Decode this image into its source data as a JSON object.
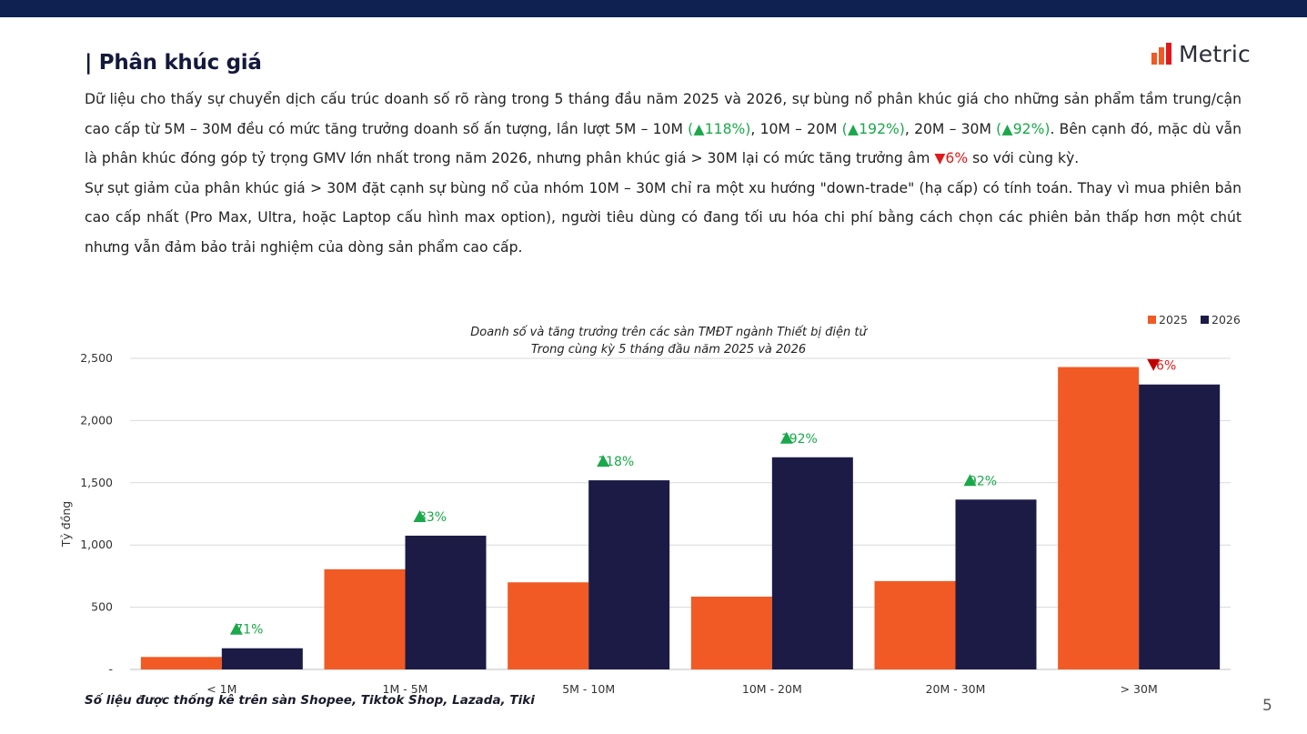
{
  "header": {
    "title": "| Phân khúc giá",
    "logo_text": "Metric"
  },
  "text": {
    "p1_a": "Dữ liệu cho thấy sự chuyển dịch cấu trúc doanh số rõ ràng trong 5 tháng đầu năm 2025 và 2026, sự bùng nổ phân khúc giá cho những sản phẩm tầm trung/cận cao cấp từ 5M – 30M đều có mức tăng trưởng doanh số ấn tượng, lần lượt 5M – 10M ",
    "p1_g1": "(▲118%)",
    "p1_b": ", 10M – 20M ",
    "p1_g2": "(▲192%)",
    "p1_c": ", 20M – 30M ",
    "p1_g3": "(▲92%)",
    "p1_d": ". Bên cạnh đó, mặc dù vẫn là phân khúc đóng góp tỷ trọng GMV lớn nhất trong năm 2026, nhưng phân khúc giá > 30M lại có mức tăng trưởng âm ",
    "p1_r1": "▼6%",
    "p1_e": " so với cùng kỳ.",
    "p2": "Sự sụt giảm của phân khúc giá > 30M đặt cạnh sự bùng nổ của nhóm 10M – 30M chỉ ra một xu hướng \"down-trade\" (hạ cấp) có tính toán. Thay vì mua phiên bản cao cấp nhất (Pro Max, Ultra, hoặc Laptop cấu hình max option), người tiêu dùng có đang tối ưu hóa chi phí bằng cách chọn các phiên bản thấp hơn một chút nhưng vẫn đảm bảo trải nghiệm của dòng sản phẩm cao cấp."
  },
  "footer": {
    "note": "Số liệu được thống kê trên sàn Shopee, Tiktok Shop, Lazada, Tiki",
    "page_number": "5"
  },
  "colors": {
    "series_2025": "#f15a24",
    "series_2026": "#1c1b46",
    "growth_up": "#1aa84a",
    "growth_down": "#c00000",
    "top_bar": "#0f2151"
  },
  "chart_data": {
    "type": "bar",
    "title": "Doanh số và tăng trưởng trên các sàn TMĐT ngành Thiết bị điện tử",
    "subtitle": "Trong cùng kỳ 5 tháng đầu năm 2025 và 2026",
    "ylabel": "Tỷ đồng",
    "xlabel": "",
    "ylim": [
      0,
      2500
    ],
    "yticks": [
      0,
      500,
      1000,
      1500,
      2000,
      2500
    ],
    "ytick_labels": [
      "-",
      "500",
      "1,000",
      "1,500",
      "2,000",
      "2,500"
    ],
    "categories": [
      "< 1M",
      "1M - 5M",
      "5M - 10M",
      "10M - 20M",
      "20M - 30M",
      "> 30M"
    ],
    "series": [
      {
        "name": "2025",
        "values": [
          100,
          805,
          700,
          585,
          710,
          2430
        ]
      },
      {
        "name": "2026",
        "values": [
          170,
          1075,
          1520,
          1705,
          1365,
          2290
        ]
      }
    ],
    "growth_labels": [
      {
        "text": "71%",
        "direction": "up"
      },
      {
        "text": "33%",
        "direction": "up"
      },
      {
        "text": "118%",
        "direction": "up"
      },
      {
        "text": "192%",
        "direction": "up"
      },
      {
        "text": "92%",
        "direction": "up"
      },
      {
        "text": "6%",
        "direction": "down"
      }
    ],
    "legend_position": "top-right",
    "grid": true
  }
}
